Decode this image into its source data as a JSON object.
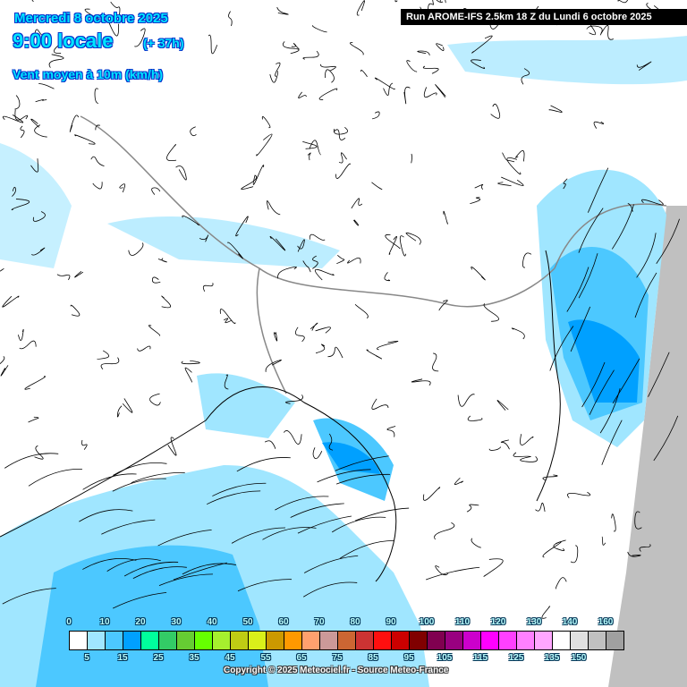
{
  "header": {
    "date": "Mercredi 8 octobre 2025",
    "time": "9:00 locale",
    "lead": "(+ 37h)",
    "variable": "Vent moyen à 10m (km/h)",
    "run": "Run AROME-IFS 2.5km 18 Z du Lundi 6 octobre 2025"
  },
  "legend": {
    "colors": [
      "#ffffff",
      "#a0e6ff",
      "#4cc8ff",
      "#00a0ff",
      "#00ff9c",
      "#33cc66",
      "#66cc33",
      "#66ff00",
      "#a6f02e",
      "#bfcc14",
      "#d9f01a",
      "#cc9900",
      "#ff9900",
      "#ffa06e",
      "#cc9999",
      "#cc6633",
      "#cc3333",
      "#ff0f0f",
      "#cc0000",
      "#800000",
      "#800050",
      "#990080",
      "#cc00cc",
      "#ff00ff",
      "#ff40ff",
      "#ff80ff",
      "#ffa6ff",
      "#ffffff",
      "#e0e0e0",
      "#c0c0c0",
      "#a0a0a0"
    ],
    "top_labels": [
      "0",
      "10",
      "20",
      "30",
      "40",
      "50",
      "60",
      "70",
      "80",
      "90",
      "100",
      "110",
      "120",
      "130",
      "140",
      "160"
    ],
    "bottom_labels": [
      "5",
      "15",
      "25",
      "35",
      "45",
      "55",
      "65",
      "75",
      "85",
      "95",
      "105",
      "115",
      "125",
      "135",
      "150"
    ]
  },
  "copyright": "Copyright © 2025 Meteociel.fr - Source Meteo-France",
  "colors": {
    "sea_outside": "#c0c0c0",
    "light_wind": "#a0e6ff",
    "moderate_wind": "#4cc8ff",
    "strong_wind": "#00a0ff"
  }
}
